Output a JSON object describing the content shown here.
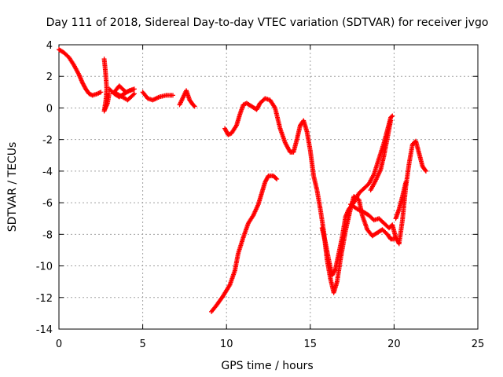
{
  "chart_data": {
    "type": "scatter",
    "title": "Day 111 of 2018, Sidereal Day-to-day VTEC variation (SDTVAR) for receiver jvgo",
    "xlabel": "GPS time / hours",
    "ylabel": "SDTVAR / TECUs",
    "xlim": [
      0,
      25
    ],
    "ylim": [
      -14,
      4
    ],
    "x_ticks": [
      "0",
      "5",
      "10",
      "15",
      "20",
      "25"
    ],
    "y_ticks": [
      "4",
      "2",
      "0",
      "-2",
      "-4",
      "-6",
      "-8",
      "-10",
      "-12",
      "-14"
    ],
    "grid": true,
    "marker": "plus",
    "color": "#ff0000",
    "series": [
      {
        "segments": [
          [
            [
              0.0,
              3.7
            ],
            [
              0.3,
              3.5
            ],
            [
              0.6,
              3.2
            ],
            [
              0.9,
              2.7
            ],
            [
              1.2,
              2.1
            ],
            [
              1.4,
              1.6
            ],
            [
              1.6,
              1.2
            ],
            [
              1.8,
              0.9
            ],
            [
              2.0,
              0.8
            ],
            [
              2.3,
              0.9
            ],
            [
              2.5,
              1.0
            ]
          ],
          [
            [
              2.7,
              3.1
            ],
            [
              2.75,
              2.6
            ],
            [
              2.8,
              2.0
            ],
            [
              2.85,
              1.2
            ],
            [
              2.8,
              0.5
            ],
            [
              2.7,
              -0.2
            ],
            [
              2.9,
              0.3
            ],
            [
              3.0,
              0.9
            ]
          ],
          [
            [
              3.0,
              1.2
            ],
            [
              3.3,
              0.9
            ],
            [
              3.6,
              0.7
            ],
            [
              3.9,
              0.9
            ],
            [
              4.2,
              1.1
            ],
            [
              4.5,
              1.2
            ],
            [
              4.0,
              1.0
            ],
            [
              3.6,
              1.4
            ],
            [
              3.3,
              1.0
            ],
            [
              4.1,
              0.5
            ],
            [
              4.5,
              0.9
            ]
          ],
          [
            [
              5.0,
              1.0
            ],
            [
              5.3,
              0.6
            ],
            [
              5.6,
              0.5
            ],
            [
              6.0,
              0.7
            ],
            [
              6.4,
              0.8
            ],
            [
              6.8,
              0.8
            ]
          ],
          [
            [
              7.2,
              0.2
            ],
            [
              7.6,
              1.1
            ],
            [
              7.8,
              0.5
            ],
            [
              8.0,
              0.2
            ],
            [
              8.1,
              0.1
            ]
          ],
          [
            [
              9.1,
              -12.9
            ],
            [
              9.4,
              -12.5
            ],
            [
              9.8,
              -11.9
            ],
            [
              10.2,
              -11.2
            ],
            [
              10.5,
              -10.3
            ],
            [
              10.7,
              -9.2
            ],
            [
              11.0,
              -8.2
            ],
            [
              11.3,
              -7.3
            ],
            [
              11.6,
              -6.8
            ],
            [
              11.9,
              -6.1
            ],
            [
              12.1,
              -5.4
            ],
            [
              12.3,
              -4.7
            ],
            [
              12.5,
              -4.3
            ],
            [
              12.8,
              -4.3
            ],
            [
              13.0,
              -4.5
            ]
          ],
          [
            [
              9.9,
              -1.3
            ],
            [
              10.1,
              -1.7
            ],
            [
              10.3,
              -1.6
            ],
            [
              10.6,
              -1.1
            ],
            [
              10.8,
              -0.4
            ],
            [
              11.0,
              0.2
            ],
            [
              11.2,
              0.3
            ],
            [
              11.5,
              0.1
            ],
            [
              11.8,
              -0.1
            ],
            [
              12.0,
              0.3
            ],
            [
              12.3,
              0.6
            ],
            [
              12.6,
              0.5
            ],
            [
              12.9,
              0.0
            ],
            [
              13.2,
              -1.3
            ],
            [
              13.5,
              -2.2
            ],
            [
              13.8,
              -2.8
            ],
            [
              14.0,
              -2.8
            ],
            [
              14.2,
              -2.0
            ],
            [
              14.4,
              -1.1
            ],
            [
              14.6,
              -0.8
            ],
            [
              14.8,
              -1.5
            ],
            [
              15.0,
              -2.7
            ],
            [
              15.2,
              -4.3
            ],
            [
              15.4,
              -5.2
            ],
            [
              15.6,
              -6.4
            ],
            [
              15.8,
              -7.8
            ],
            [
              16.0,
              -9.6
            ],
            [
              16.2,
              -10.8
            ],
            [
              16.4,
              -11.7
            ],
            [
              16.6,
              -11.0
            ],
            [
              16.8,
              -9.6
            ],
            [
              17.1,
              -7.8
            ],
            [
              17.4,
              -6.4
            ],
            [
              17.6,
              -5.6
            ],
            [
              17.9,
              -5.8
            ],
            [
              18.1,
              -6.8
            ],
            [
              18.4,
              -7.7
            ],
            [
              18.7,
              -8.1
            ],
            [
              19.0,
              -7.9
            ],
            [
              19.3,
              -7.7
            ],
            [
              19.6,
              -8.0
            ],
            [
              19.8,
              -8.3
            ],
            [
              20.0,
              -8.3
            ]
          ],
          [
            [
              15.7,
              -7.6
            ],
            [
              15.9,
              -8.5
            ],
            [
              16.1,
              -9.6
            ],
            [
              16.3,
              -10.6
            ],
            [
              16.5,
              -10.2
            ],
            [
              16.7,
              -9.2
            ],
            [
              16.9,
              -8.2
            ],
            [
              17.1,
              -6.9
            ],
            [
              17.3,
              -6.4
            ],
            [
              17.6,
              -6.0
            ],
            [
              17.9,
              -5.4
            ],
            [
              18.2,
              -5.1
            ],
            [
              18.5,
              -4.8
            ],
            [
              18.8,
              -4.2
            ],
            [
              19.1,
              -3.2
            ],
            [
              19.4,
              -2.2
            ],
            [
              19.6,
              -1.4
            ],
            [
              19.8,
              -0.6
            ],
            [
              19.9,
              -0.5
            ]
          ],
          [
            [
              17.4,
              -6.1
            ],
            [
              17.8,
              -6.4
            ],
            [
              18.2,
              -6.6
            ],
            [
              18.5,
              -6.8
            ],
            [
              18.8,
              -7.1
            ],
            [
              19.1,
              -7.0
            ],
            [
              19.4,
              -7.3
            ],
            [
              19.7,
              -7.6
            ],
            [
              19.9,
              -7.4
            ],
            [
              20.1,
              -8.2
            ],
            [
              20.3,
              -8.6
            ],
            [
              20.5,
              -7.1
            ],
            [
              20.7,
              -5.0
            ],
            [
              20.9,
              -3.5
            ],
            [
              21.1,
              -2.3
            ],
            [
              21.3,
              -2.1
            ],
            [
              21.5,
              -2.9
            ],
            [
              21.7,
              -3.7
            ],
            [
              21.9,
              -4.0
            ]
          ],
          [
            [
              18.6,
              -5.2
            ],
            [
              18.9,
              -4.6
            ],
            [
              19.2,
              -3.9
            ],
            [
              19.4,
              -3.0
            ],
            [
              19.6,
              -1.9
            ],
            [
              19.8,
              -0.8
            ]
          ],
          [
            [
              20.1,
              -7.0
            ],
            [
              20.3,
              -6.4
            ],
            [
              20.5,
              -5.6
            ],
            [
              20.7,
              -4.7
            ]
          ]
        ]
      }
    ]
  }
}
